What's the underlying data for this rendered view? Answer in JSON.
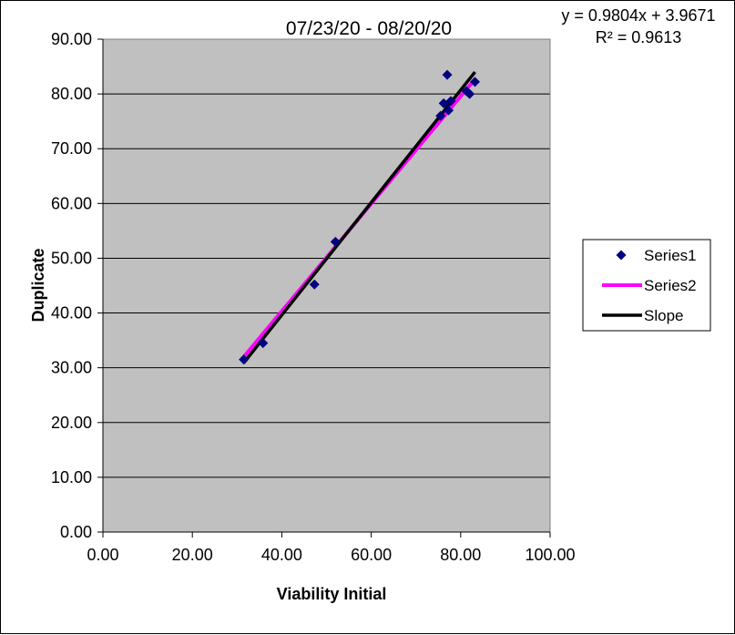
{
  "chart_data": {
    "type": "scatter",
    "title": "07/23/20 - 08/20/20",
    "xlabel": "Viability Initial",
    "ylabel": "Duplicate",
    "xlim": [
      0,
      100
    ],
    "ylim": [
      0,
      90
    ],
    "x_ticks": [
      "0.00",
      "20.00",
      "40.00",
      "60.00",
      "80.00",
      "100.00"
    ],
    "y_ticks": [
      "0.00",
      "10.00",
      "20.00",
      "30.00",
      "40.00",
      "50.00",
      "60.00",
      "70.00",
      "80.00",
      "90.00"
    ],
    "grid": "horizontal",
    "plot_background": "#c0c0c0",
    "legend_position": "right",
    "trendline_equation": "y = 0.9804x + 3.9671",
    "r_squared_label": "R² = 0.9613",
    "series": [
      {
        "name": "Series1",
        "kind": "markers",
        "marker": "diamond",
        "color": "#000080",
        "points": [
          {
            "x": 31.5,
            "y": 31.5
          },
          {
            "x": 35.8,
            "y": 34.5
          },
          {
            "x": 47.3,
            "y": 45.2
          },
          {
            "x": 52.0,
            "y": 53.0
          },
          {
            "x": 75.5,
            "y": 76.0
          },
          {
            "x": 76.2,
            "y": 78.3
          },
          {
            "x": 77.0,
            "y": 83.5
          },
          {
            "x": 77.3,
            "y": 77.0
          },
          {
            "x": 77.8,
            "y": 78.7
          },
          {
            "x": 81.3,
            "y": 80.5
          },
          {
            "x": 82.0,
            "y": 80.0
          },
          {
            "x": 83.2,
            "y": 82.2
          }
        ]
      },
      {
        "name": "Series2",
        "kind": "line",
        "color": "#ff00ff",
        "points": [
          {
            "x": 31.5,
            "y": 32.0
          },
          {
            "x": 83.2,
            "y": 82.7
          }
        ]
      },
      {
        "name": "Slope",
        "kind": "line",
        "color": "#000000",
        "points": [
          {
            "x": 31.5,
            "y": 30.9
          },
          {
            "x": 83.2,
            "y": 84.0
          }
        ]
      }
    ]
  }
}
